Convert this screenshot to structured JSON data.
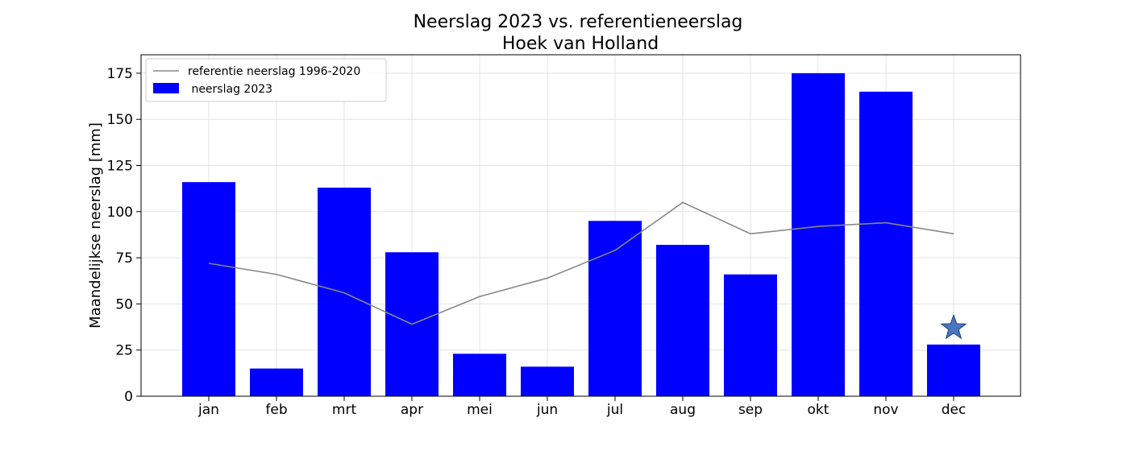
{
  "chart_data": {
    "type": "bar",
    "title": "Neerslag 2023 vs. referentieneerslag",
    "subtitle": "Hoek van Holland",
    "ylabel": "Maandelijkse neerslag [mm]",
    "xlabel": "",
    "categories": [
      "jan",
      "feb",
      "mrt",
      "apr",
      "mei",
      "jun",
      "jul",
      "aug",
      "sep",
      "okt",
      "nov",
      "dec"
    ],
    "ylim": [
      0,
      185
    ],
    "yticks": [
      0,
      25,
      50,
      75,
      100,
      125,
      150,
      175
    ],
    "grid": true,
    "legend_position": "top-left",
    "series": [
      {
        "name": " neerslag 2023",
        "kind": "bar",
        "color": "#0000ff",
        "values": [
          116,
          15,
          113,
          78,
          23,
          16,
          95,
          82,
          66,
          175,
          165,
          28
        ]
      },
      {
        "name": "referentie neerslag 1996-2020",
        "kind": "line",
        "color": "#888888",
        "values": [
          72,
          66,
          56,
          39,
          54,
          64,
          79,
          105,
          88,
          92,
          94,
          88
        ]
      }
    ],
    "marker": {
      "shape": "star",
      "category": "dec",
      "value": 37,
      "color": "#4a76c0"
    }
  }
}
